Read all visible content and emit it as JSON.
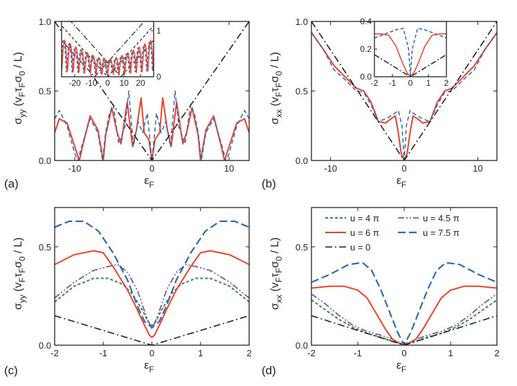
{
  "figure": {
    "colors": {
      "red": "#e8412d",
      "blue": "#2f67b1",
      "green": "#2f8a3a",
      "purple": "#7a55a8",
      "black": "#231f20"
    }
  },
  "chart_data": [
    {
      "type": "line",
      "panel_label": "(a)",
      "xlabel": "ε",
      "xlabel_sub": "F",
      "ylabel": "σ",
      "ylabel_sub": "yy",
      "ylabel_units": "(v",
      "ylabel_units_parts": [
        "F",
        "τ",
        "F",
        "σ",
        "0",
        " / L)"
      ],
      "xlim": [
        -12.6,
        12.6
      ],
      "ylim": [
        0,
        1
      ],
      "xticks": [
        -10,
        0,
        10
      ],
      "xtick_labels": [
        "-10",
        "0",
        "10"
      ],
      "yticks": [
        0,
        0.5,
        1
      ],
      "ytick_labels": [
        "0.0",
        "0.5",
        "1.0"
      ],
      "series": [
        {
          "name": "u = 6 π",
          "style": "red-solid",
          "x": [
            -12.6,
            -12,
            -11,
            -10,
            -9.4,
            -9,
            -8,
            -7,
            -6.3,
            -6,
            -5.2,
            -4.5,
            -4,
            -3.2,
            -2.5,
            -2,
            -1.4,
            -1,
            -0.4,
            0,
            0.4,
            1,
            1.4,
            2,
            2.5,
            3.2,
            4,
            4.5,
            5.2,
            6,
            6.3,
            7,
            8,
            9,
            9.4,
            10,
            11,
            12,
            12.6
          ],
          "y": [
            0.2,
            0.3,
            0.27,
            0.1,
            0.0,
            0.1,
            0.32,
            0.22,
            0.0,
            0.18,
            0.38,
            0.2,
            0.12,
            0.42,
            0.1,
            0.22,
            0.45,
            0.2,
            0.15,
            0.0,
            0.15,
            0.2,
            0.45,
            0.22,
            0.1,
            0.42,
            0.12,
            0.2,
            0.38,
            0.18,
            0.0,
            0.22,
            0.32,
            0.1,
            0.0,
            0.1,
            0.27,
            0.3,
            0.2
          ]
        },
        {
          "name": "u = 7.5 π",
          "style": "blue-dashed",
          "x": [
            -12.6,
            -12,
            -11,
            -10,
            -9.6,
            -9,
            -8,
            -7,
            -6.4,
            -6,
            -5.5,
            -5,
            -4.3,
            -3.5,
            -3,
            -2.4,
            -1.8,
            -1.2,
            -0.6,
            0,
            0.6,
            1.2,
            1.8,
            2.4,
            3,
            3.5,
            4.3,
            5,
            5.5,
            6,
            6.4,
            7,
            8,
            9,
            9.6,
            10,
            11,
            12,
            12.6
          ],
          "y": [
            0.3,
            0.36,
            0.25,
            0.05,
            0.0,
            0.12,
            0.3,
            0.2,
            0.0,
            0.2,
            0.34,
            0.4,
            0.12,
            0.24,
            0.5,
            0.1,
            0.28,
            0.2,
            0.34,
            0.0,
            0.34,
            0.2,
            0.28,
            0.1,
            0.5,
            0.24,
            0.12,
            0.4,
            0.34,
            0.2,
            0.0,
            0.2,
            0.3,
            0.12,
            0.0,
            0.05,
            0.25,
            0.36,
            0.3
          ]
        },
        {
          "name": "u = 0",
          "style": "black-dashdot",
          "x": [
            -12.6,
            0,
            12.6
          ],
          "y": [
            1.0,
            0.0,
            1.0
          ]
        }
      ],
      "inset": {
        "xlim": [
          -28,
          28
        ],
        "ylim": [
          0,
          1.2
        ],
        "xticks": [
          -20,
          -10,
          0,
          10,
          20
        ],
        "xtick_labels": [
          "-20",
          "-10",
          "0",
          "10",
          "20"
        ],
        "yticks": [
          0,
          1
        ],
        "ytick_labels": [
          "0",
          "1"
        ]
      }
    },
    {
      "type": "line",
      "panel_label": "(b)",
      "xlabel": "ε",
      "xlabel_sub": "F",
      "ylabel": "σ",
      "ylabel_sub": "xx",
      "ylabel_units": "(v",
      "ylabel_units_parts": [
        "F",
        "τ",
        "F",
        "σ",
        "0",
        " / L)"
      ],
      "xlim": [
        -12.6,
        12.6
      ],
      "ylim": [
        0,
        1
      ],
      "xticks": [
        -10,
        0,
        10
      ],
      "xtick_labels": [
        "-10",
        "0",
        "10"
      ],
      "yticks": [
        0,
        0.5,
        1
      ],
      "ytick_labels": [
        "0.0",
        "0.5",
        "1.0"
      ],
      "series": [
        {
          "name": "u = 6 π",
          "style": "red-solid",
          "x": [
            -12.6,
            -11,
            -9.5,
            -8,
            -6.5,
            -5.5,
            -4.5,
            -3.5,
            -2.5,
            -1.8,
            -1.2,
            -0.8,
            -0.4,
            0,
            0.4,
            0.8,
            1.2,
            1.8,
            2.5,
            3.5,
            4.5,
            5.5,
            6.5,
            8,
            9.5,
            11,
            12.6
          ],
          "y": [
            0.92,
            0.8,
            0.68,
            0.6,
            0.52,
            0.5,
            0.42,
            0.28,
            0.27,
            0.3,
            0.32,
            0.2,
            0.05,
            0.0,
            0.05,
            0.2,
            0.32,
            0.3,
            0.27,
            0.28,
            0.42,
            0.5,
            0.52,
            0.6,
            0.68,
            0.8,
            0.92
          ]
        },
        {
          "name": "u = 7.5 π",
          "style": "blue-dashed",
          "x": [
            -12.6,
            -11,
            -9.5,
            -8,
            -6.5,
            -5.5,
            -4.5,
            -3.5,
            -2.5,
            -1.5,
            -0.8,
            -0.3,
            0,
            0.3,
            0.8,
            1.5,
            2.5,
            3.5,
            4.5,
            5.5,
            6.5,
            8,
            9.5,
            11,
            12.6
          ],
          "y": [
            0.92,
            0.8,
            0.65,
            0.58,
            0.5,
            0.49,
            0.4,
            0.28,
            0.3,
            0.33,
            0.36,
            0.25,
            0.0,
            0.25,
            0.36,
            0.33,
            0.3,
            0.28,
            0.4,
            0.49,
            0.5,
            0.58,
            0.65,
            0.8,
            0.92
          ]
        },
        {
          "name": "u = 0",
          "style": "black-dashdot",
          "x": [
            -12.6,
            0,
            12.6
          ],
          "y": [
            1.0,
            0.0,
            1.0
          ]
        }
      ],
      "inset": {
        "xlim": [
          -2,
          2
        ],
        "ylim": [
          0,
          0.4
        ],
        "xticks": [
          -2,
          -1,
          0,
          1,
          2
        ],
        "xtick_labels": [
          "-2",
          "-1",
          "0",
          "1",
          "2"
        ],
        "yticks": [
          0,
          0.2,
          0.4
        ],
        "ytick_labels": [
          "0.0",
          "0.2",
          "0.4"
        ]
      }
    },
    {
      "type": "line",
      "panel_label": "(c)",
      "xlabel": "ε",
      "xlabel_sub": "F",
      "ylabel": "σ",
      "ylabel_sub": "yy",
      "ylabel_units": "(v",
      "ylabel_units_parts": [
        "F",
        "τ",
        "F",
        "σ",
        "0",
        " / L)"
      ],
      "xlim": [
        -2,
        2
      ],
      "ylim": [
        0,
        0.7
      ],
      "xticks": [
        -2,
        -1,
        0,
        1,
        2
      ],
      "xtick_labels": [
        "-2",
        "-1",
        "0",
        "1",
        "2"
      ],
      "yticks": [
        0,
        0.5
      ],
      "ytick_labels": [
        "0.0",
        "0.5"
      ],
      "series": [
        {
          "name": "u = 4 π",
          "style": "green-short-dash",
          "x": [
            -2,
            -1.6,
            -1.2,
            -0.9,
            -0.6,
            -0.4,
            -0.2,
            -0.08,
            0,
            0.08,
            0.2,
            0.4,
            0.6,
            0.9,
            1.2,
            1.6,
            2
          ],
          "y": [
            0.22,
            0.3,
            0.34,
            0.34,
            0.31,
            0.26,
            0.18,
            0.12,
            0.1,
            0.12,
            0.18,
            0.26,
            0.31,
            0.34,
            0.34,
            0.3,
            0.22
          ]
        },
        {
          "name": "u = 4.5 π",
          "style": "purple-dashdotdot",
          "x": [
            -2,
            -1.6,
            -1.2,
            -0.9,
            -0.7,
            -0.5,
            -0.3,
            -0.12,
            0,
            0.12,
            0.3,
            0.5,
            0.7,
            0.9,
            1.2,
            1.6,
            2
          ],
          "y": [
            0.24,
            0.32,
            0.38,
            0.4,
            0.41,
            0.37,
            0.28,
            0.15,
            0.08,
            0.15,
            0.28,
            0.37,
            0.41,
            0.4,
            0.38,
            0.32,
            0.24
          ]
        },
        {
          "name": "u = 6 π",
          "style": "red-solid",
          "x": [
            -2,
            -1.6,
            -1.2,
            -1.0,
            -0.8,
            -0.5,
            -0.3,
            -0.15,
            -0.05,
            0,
            0.05,
            0.15,
            0.3,
            0.5,
            0.8,
            1.0,
            1.2,
            1.6,
            2
          ],
          "y": [
            0.41,
            0.46,
            0.48,
            0.47,
            0.4,
            0.28,
            0.18,
            0.1,
            0.05,
            0.04,
            0.05,
            0.1,
            0.18,
            0.28,
            0.4,
            0.47,
            0.48,
            0.46,
            0.41
          ]
        },
        {
          "name": "u = 7.5 π",
          "style": "blue-long-dash",
          "x": [
            -2,
            -1.7,
            -1.4,
            -1.1,
            -0.8,
            -0.5,
            -0.3,
            -0.15,
            0,
            0.15,
            0.3,
            0.5,
            0.8,
            1.1,
            1.4,
            1.7,
            2
          ],
          "y": [
            0.6,
            0.63,
            0.63,
            0.58,
            0.47,
            0.33,
            0.2,
            0.12,
            0.09,
            0.12,
            0.2,
            0.33,
            0.47,
            0.58,
            0.63,
            0.63,
            0.6
          ]
        },
        {
          "name": "u = 0",
          "style": "black-dashdot",
          "x": [
            -2,
            0,
            2
          ],
          "y": [
            0.15,
            0.0,
            0.15
          ]
        }
      ]
    },
    {
      "type": "line",
      "panel_label": "(d)",
      "xlabel": "ε",
      "xlabel_sub": "F",
      "ylabel": "σ",
      "ylabel_sub": "xx",
      "ylabel_units": "(v",
      "ylabel_units_parts": [
        "F",
        "τ",
        "F",
        "σ",
        "0",
        " / L)"
      ],
      "xlim": [
        -2,
        2
      ],
      "ylim": [
        0,
        0.7
      ],
      "xticks": [
        -2,
        -1,
        0,
        1,
        2
      ],
      "xtick_labels": [
        "-2",
        "-1",
        "0",
        "1",
        "2"
      ],
      "yticks": [
        0,
        0.5
      ],
      "ytick_labels": [
        "0.0",
        "0.5"
      ],
      "legend": {
        "placement": "top-center",
        "entries": [
          "u = 4 π",
          "u = 4.5 π",
          "u = 6 π",
          "u = 7.5 π",
          "u = 0"
        ]
      },
      "series": [
        {
          "name": "u = 4 π",
          "style": "green-short-dash",
          "x": [
            -2,
            -1.7,
            -1.4,
            -1.1,
            -0.8,
            -0.5,
            -0.25,
            -0.1,
            0,
            0.1,
            0.25,
            0.5,
            0.8,
            1.1,
            1.4,
            1.7,
            2
          ],
          "y": [
            0.23,
            0.18,
            0.13,
            0.09,
            0.06,
            0.04,
            0.02,
            0.01,
            0.01,
            0.01,
            0.02,
            0.04,
            0.06,
            0.09,
            0.13,
            0.18,
            0.23
          ]
        },
        {
          "name": "u = 4.5 π",
          "style": "purple-dashdotdot",
          "x": [
            -2,
            -1.7,
            -1.4,
            -1.1,
            -0.8,
            -0.5,
            -0.25,
            -0.1,
            0,
            0.1,
            0.25,
            0.5,
            0.8,
            1.1,
            1.4,
            1.7,
            2
          ],
          "y": [
            0.26,
            0.21,
            0.15,
            0.1,
            0.07,
            0.05,
            0.03,
            0.01,
            0.01,
            0.01,
            0.03,
            0.05,
            0.07,
            0.1,
            0.15,
            0.21,
            0.26
          ]
        },
        {
          "name": "u = 6 π",
          "style": "red-solid",
          "x": [
            -2,
            -1.6,
            -1.3,
            -1.0,
            -0.8,
            -0.6,
            -0.4,
            -0.25,
            -0.1,
            0,
            0.1,
            0.25,
            0.4,
            0.6,
            0.8,
            1.0,
            1.3,
            1.6,
            2
          ],
          "y": [
            0.29,
            0.3,
            0.3,
            0.28,
            0.24,
            0.16,
            0.08,
            0.03,
            0.01,
            0.0,
            0.01,
            0.03,
            0.08,
            0.16,
            0.24,
            0.28,
            0.3,
            0.3,
            0.29
          ]
        },
        {
          "name": "u = 7.5 π",
          "style": "blue-long-dash",
          "x": [
            -2,
            -1.6,
            -1.2,
            -0.9,
            -0.7,
            -0.5,
            -0.3,
            -0.15,
            0,
            0.15,
            0.3,
            0.5,
            0.7,
            0.9,
            1.2,
            1.6,
            2
          ],
          "y": [
            0.32,
            0.36,
            0.41,
            0.42,
            0.38,
            0.28,
            0.16,
            0.07,
            0.0,
            0.07,
            0.16,
            0.28,
            0.38,
            0.42,
            0.41,
            0.36,
            0.32
          ]
        },
        {
          "name": "u = 0",
          "style": "black-dashdot",
          "x": [
            -2,
            0,
            2
          ],
          "y": [
            0.15,
            0.0,
            0.15
          ]
        }
      ]
    }
  ]
}
